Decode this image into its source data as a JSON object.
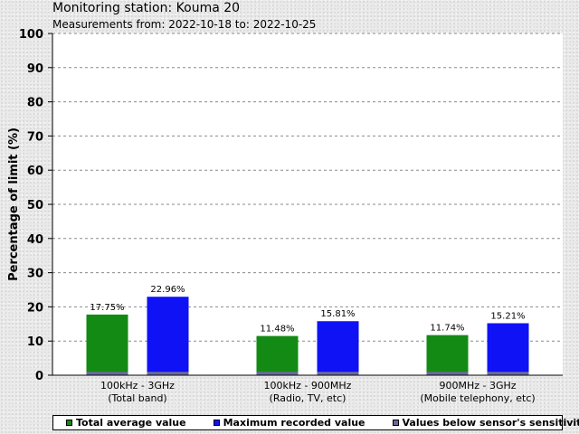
{
  "header": {
    "title": "Monitoring station: Kouma 20",
    "subtitle": "Measurements from: 2022-10-18 to: 2022-10-25"
  },
  "chart_data": {
    "type": "bar",
    "ylabel": "Percentage of limit (%)",
    "ylim": [
      0,
      100
    ],
    "yticks": [
      0,
      10,
      20,
      30,
      40,
      50,
      60,
      70,
      80,
      90,
      100
    ],
    "grid": true,
    "categories": [
      {
        "line1": "100kHz - 3GHz",
        "line2": "(Total band)"
      },
      {
        "line1": "100kHz - 900MHz",
        "line2": "(Radio, TV, etc)"
      },
      {
        "line1": "900MHz - 3GHz",
        "line2": "(Mobile telephony, etc)"
      }
    ],
    "series": [
      {
        "name": "Total average value",
        "color": "#138a13",
        "values": [
          17.75,
          11.48,
          11.74
        ],
        "labels": [
          "17.75%",
          "11.48%",
          "11.74%"
        ]
      },
      {
        "name": "Maximum recorded value",
        "color": "#0f12f5",
        "values": [
          22.96,
          15.81,
          15.21
        ],
        "labels": [
          "22.96%",
          "15.81%",
          "15.21%"
        ]
      }
    ],
    "sensitivity": {
      "name": "Values below sensor's sensitivity",
      "color": "#6a6a9a",
      "value": 1
    }
  }
}
